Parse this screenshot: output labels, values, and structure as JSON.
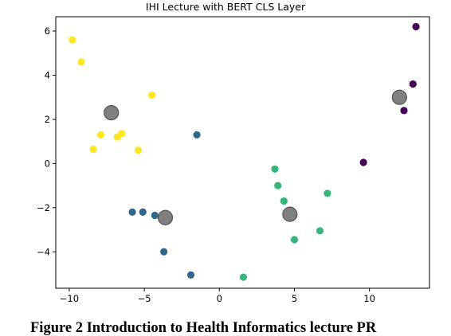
{
  "chart_data": {
    "type": "scatter",
    "title": "IHI Lecture with BERT CLS Layer",
    "xlabel": "",
    "ylabel": "",
    "xlim": [
      -10.9,
      14.0
    ],
    "ylim": [
      -5.65,
      6.65
    ],
    "xticks": [
      -10,
      -5,
      0,
      5,
      10
    ],
    "xtick_labels": [
      "−10",
      "−5",
      "0",
      "5",
      "10"
    ],
    "yticks": [
      -4,
      -2,
      0,
      2,
      4,
      6
    ],
    "ytick_labels": [
      "−4",
      "−2",
      "0",
      "2",
      "4",
      "6"
    ],
    "grid": false,
    "legend": false,
    "colors": {
      "cluster_purple": "#440154",
      "cluster_blue": "#30678d",
      "cluster_green": "#35b779",
      "cluster_yellow": "#fde725",
      "centroid": "#808080"
    },
    "series": [
      {
        "color_key": "cluster_purple",
        "x": [
          13.1,
          12.9,
          12.3,
          9.6
        ],
        "y": [
          6.2,
          3.6,
          2.4,
          0.05
        ]
      },
      {
        "color_key": "cluster_blue",
        "x": [
          -1.5,
          -5.8,
          -5.1,
          -4.3,
          -3.7,
          -1.9
        ],
        "y": [
          1.3,
          -2.2,
          -2.2,
          -2.35,
          -4.0,
          -5.05
        ]
      },
      {
        "color_key": "cluster_green",
        "x": [
          3.7,
          3.9,
          4.3,
          7.2,
          6.7,
          5.0,
          1.6
        ],
        "y": [
          -0.25,
          -1.0,
          -1.7,
          -1.35,
          -3.05,
          -3.45,
          -5.15
        ]
      },
      {
        "color_key": "cluster_yellow",
        "x": [
          -9.8,
          -9.2,
          -4.5,
          -6.5,
          -6.8,
          -7.9,
          -8.4,
          -5.4
        ],
        "y": [
          5.6,
          4.6,
          3.1,
          1.35,
          1.2,
          1.3,
          0.65,
          0.6
        ]
      },
      {
        "color_key": "centroid",
        "marker": "large",
        "x": [
          -7.2,
          -3.6,
          4.7,
          12.0
        ],
        "y": [
          2.3,
          -2.45,
          -2.3,
          3.0
        ]
      }
    ]
  },
  "caption": "Figure 2 Introduction to Health Informatics lecture PR"
}
